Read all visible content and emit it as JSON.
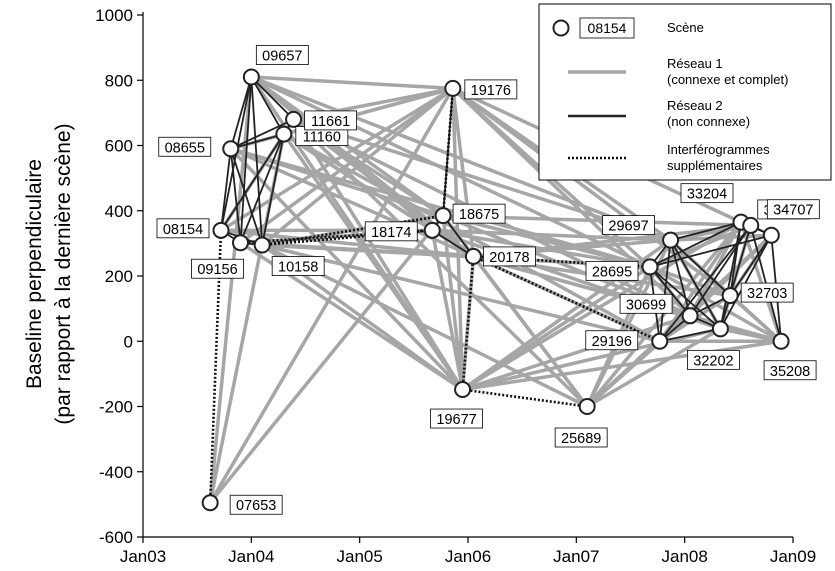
{
  "chart_data": {
    "type": "scatter",
    "ylabel_line1": "Baseline perpendiculaire",
    "ylabel_line2": "(par rapport à la dernière scène)",
    "xlim": [
      2003.0,
      2009.0
    ],
    "ylim": [
      -600,
      1000
    ],
    "x_ticks": [
      {
        "value": 2003,
        "label": "Jan03"
      },
      {
        "value": 2004,
        "label": "Jan04"
      },
      {
        "value": 2005,
        "label": "Jan05"
      },
      {
        "value": 2006,
        "label": "Jan06"
      },
      {
        "value": 2007,
        "label": "Jan07"
      },
      {
        "value": 2008,
        "label": "Jan08"
      },
      {
        "value": 2009,
        "label": "Jan09"
      }
    ],
    "y_ticks": [
      1000,
      800,
      600,
      400,
      200,
      0,
      -200,
      -400,
      -600
    ],
    "grid": false,
    "legend": {
      "placement": "top-right",
      "scene_sample": "08154",
      "scene_label": "Scène",
      "network1_line1": "Réseau 1",
      "network1_line2": "(connexe et complet)",
      "network2_line1": "Réseau 2",
      "network2_line2": "(non connexe)",
      "extra_line1": "Interférogrammes",
      "extra_line2": "supplémentaires"
    },
    "colors": {
      "network1": "#a6a6a6",
      "network2": "#222222",
      "extra": "#111111",
      "node_fill": "#ffffff",
      "node_stroke": "#222222"
    },
    "scenes": [
      {
        "id": "07653",
        "x": 2003.62,
        "y": -495
      },
      {
        "id": "08154",
        "x": 2003.72,
        "y": 340
      },
      {
        "id": "08655",
        "x": 2003.81,
        "y": 590
      },
      {
        "id": "09156",
        "x": 2003.9,
        "y": 302
      },
      {
        "id": "09657",
        "x": 2004.0,
        "y": 810
      },
      {
        "id": "10158",
        "x": 2004.1,
        "y": 295
      },
      {
        "id": "11160",
        "x": 2004.3,
        "y": 635
      },
      {
        "id": "11661",
        "x": 2004.39,
        "y": 680
      },
      {
        "id": "18174",
        "x": 2005.67,
        "y": 340
      },
      {
        "id": "18675",
        "x": 2005.77,
        "y": 385
      },
      {
        "id": "19176",
        "x": 2005.86,
        "y": 775
      },
      {
        "id": "19677",
        "x": 2005.95,
        "y": -148
      },
      {
        "id": "20178",
        "x": 2006.05,
        "y": 260
      },
      {
        "id": "25689",
        "x": 2007.1,
        "y": -200
      },
      {
        "id": "28695",
        "x": 2007.68,
        "y": 228
      },
      {
        "id": "29196",
        "x": 2007.77,
        "y": 0
      },
      {
        "id": "29697",
        "x": 2007.87,
        "y": 310
      },
      {
        "id": "30699",
        "x": 2008.05,
        "y": 78
      },
      {
        "id": "32202",
        "x": 2008.33,
        "y": 38
      },
      {
        "id": "32703",
        "x": 2008.42,
        "y": 140
      },
      {
        "id": "33204",
        "x": 2008.52,
        "y": 365
      },
      {
        "id": "33705",
        "x": 2008.61,
        "y": 355
      },
      {
        "id": "34707",
        "x": 2008.8,
        "y": 325
      },
      {
        "id": "35208",
        "x": 2008.89,
        "y": 0
      }
    ],
    "network1_edges": [
      [
        "07653",
        "09657"
      ],
      [
        "07653",
        "11160"
      ],
      [
        "07653",
        "18675"
      ],
      [
        "07653",
        "19176"
      ],
      [
        "08154",
        "11661"
      ],
      [
        "08154",
        "18174"
      ],
      [
        "08154",
        "19176"
      ],
      [
        "08154",
        "20178"
      ],
      [
        "08655",
        "18675"
      ],
      [
        "08655",
        "19176"
      ],
      [
        "08655",
        "20178"
      ],
      [
        "08655",
        "19677"
      ],
      [
        "08655",
        "28695"
      ],
      [
        "09156",
        "19176"
      ],
      [
        "09156",
        "18174"
      ],
      [
        "09156",
        "20178"
      ],
      [
        "09156",
        "19677"
      ],
      [
        "09657",
        "19176"
      ],
      [
        "09657",
        "18675"
      ],
      [
        "09657",
        "18174"
      ],
      [
        "09657",
        "20178"
      ],
      [
        "09657",
        "19677"
      ],
      [
        "09657",
        "28695"
      ],
      [
        "09657",
        "29697"
      ],
      [
        "10158",
        "19176"
      ],
      [
        "10158",
        "18675"
      ],
      [
        "10158",
        "20178"
      ],
      [
        "10158",
        "19677"
      ],
      [
        "10158",
        "28695"
      ],
      [
        "10158",
        "29196"
      ],
      [
        "10158",
        "25689"
      ],
      [
        "11160",
        "19176"
      ],
      [
        "11160",
        "18174"
      ],
      [
        "11160",
        "20178"
      ],
      [
        "11160",
        "19677"
      ],
      [
        "11160",
        "29196"
      ],
      [
        "11661",
        "19176"
      ],
      [
        "11661",
        "18675"
      ],
      [
        "11661",
        "20178"
      ],
      [
        "11661",
        "19677"
      ],
      [
        "11661",
        "29697"
      ],
      [
        "11661",
        "25689"
      ],
      [
        "11661",
        "30699"
      ],
      [
        "18174",
        "19677"
      ],
      [
        "18174",
        "28695"
      ],
      [
        "18174",
        "29697"
      ],
      [
        "18174",
        "32202"
      ],
      [
        "18675",
        "19677"
      ],
      [
        "18675",
        "25689"
      ],
      [
        "18675",
        "28695"
      ],
      [
        "18675",
        "30699"
      ],
      [
        "18675",
        "33705"
      ],
      [
        "19176",
        "19677"
      ],
      [
        "19176",
        "20178"
      ],
      [
        "19176",
        "28695"
      ],
      [
        "19176",
        "29697"
      ],
      [
        "19176",
        "33204"
      ],
      [
        "19176",
        "30699"
      ],
      [
        "19176",
        "32703"
      ],
      [
        "19677",
        "20178"
      ],
      [
        "19677",
        "28695"
      ],
      [
        "19677",
        "29697"
      ],
      [
        "19677",
        "30699"
      ],
      [
        "19677",
        "32202"
      ],
      [
        "19677",
        "33204"
      ],
      [
        "19677",
        "35208"
      ],
      [
        "20178",
        "25689"
      ],
      [
        "20178",
        "29196"
      ],
      [
        "20178",
        "29697"
      ],
      [
        "20178",
        "32703"
      ],
      [
        "20178",
        "33705"
      ],
      [
        "20178",
        "35208"
      ],
      [
        "20178",
        "30699"
      ],
      [
        "25689",
        "28695"
      ],
      [
        "25689",
        "29697"
      ],
      [
        "25689",
        "30699"
      ],
      [
        "25689",
        "32202"
      ],
      [
        "25689",
        "33204"
      ],
      [
        "25689",
        "34707"
      ],
      [
        "25689",
        "29196"
      ],
      [
        "28695",
        "30699"
      ],
      [
        "28695",
        "32703"
      ],
      [
        "28695",
        "33705"
      ],
      [
        "28695",
        "35208"
      ],
      [
        "29196",
        "32703"
      ],
      [
        "29196",
        "34707"
      ],
      [
        "29196",
        "35208"
      ],
      [
        "29196",
        "33204"
      ],
      [
        "29697",
        "32202"
      ],
      [
        "29697",
        "33705"
      ],
      [
        "29697",
        "35208"
      ],
      [
        "29697",
        "34707"
      ],
      [
        "30699",
        "33204"
      ],
      [
        "30699",
        "34707"
      ],
      [
        "30699",
        "35208"
      ],
      [
        "32202",
        "33705"
      ],
      [
        "32202",
        "35208"
      ],
      [
        "32703",
        "34707"
      ],
      [
        "32703",
        "35208"
      ],
      [
        "33204",
        "35208"
      ]
    ],
    "network2_edges": [
      [
        "08154",
        "08655"
      ],
      [
        "08154",
        "09156"
      ],
      [
        "08154",
        "09657"
      ],
      [
        "08154",
        "10158"
      ],
      [
        "08154",
        "11160"
      ],
      [
        "08655",
        "09156"
      ],
      [
        "08655",
        "09657"
      ],
      [
        "08655",
        "10158"
      ],
      [
        "08655",
        "11160"
      ],
      [
        "08655",
        "11661"
      ],
      [
        "09156",
        "09657"
      ],
      [
        "09156",
        "10158"
      ],
      [
        "09156",
        "11160"
      ],
      [
        "09657",
        "10158"
      ],
      [
        "09657",
        "11160"
      ],
      [
        "09657",
        "11661"
      ],
      [
        "10158",
        "11160"
      ],
      [
        "11160",
        "11661"
      ],
      [
        "18174",
        "18675"
      ],
      [
        "18174",
        "20178"
      ],
      [
        "18675",
        "20178"
      ],
      [
        "18675",
        "19176"
      ],
      [
        "28695",
        "29196"
      ],
      [
        "28695",
        "29697"
      ],
      [
        "28695",
        "30699"
      ],
      [
        "28695",
        "32202"
      ],
      [
        "28695",
        "33204"
      ],
      [
        "28695",
        "34707"
      ],
      [
        "29196",
        "29697"
      ],
      [
        "29196",
        "30699"
      ],
      [
        "29196",
        "32202"
      ],
      [
        "29196",
        "33705"
      ],
      [
        "29697",
        "30699"
      ],
      [
        "29697",
        "32703"
      ],
      [
        "29697",
        "33204"
      ],
      [
        "30699",
        "32202"
      ],
      [
        "30699",
        "32703"
      ],
      [
        "30699",
        "33705"
      ],
      [
        "32202",
        "32703"
      ],
      [
        "32202",
        "33204"
      ],
      [
        "32202",
        "34707"
      ],
      [
        "32703",
        "33204"
      ],
      [
        "32703",
        "33705"
      ],
      [
        "32703",
        "34707"
      ],
      [
        "33204",
        "33705"
      ],
      [
        "33204",
        "34707"
      ],
      [
        "33705",
        "34707"
      ],
      [
        "33705",
        "35208"
      ],
      [
        "34707",
        "35208"
      ],
      [
        "32202",
        "29697"
      ]
    ],
    "extra_edges": [
      [
        "07653",
        "08154"
      ],
      [
        "10158",
        "18174"
      ],
      [
        "09156",
        "18174"
      ],
      [
        "10158",
        "18675"
      ],
      [
        "18675",
        "19176"
      ],
      [
        "19677",
        "20178"
      ],
      [
        "19677",
        "25689"
      ],
      [
        "20178",
        "28695"
      ],
      [
        "20178",
        "29196"
      ]
    ]
  }
}
